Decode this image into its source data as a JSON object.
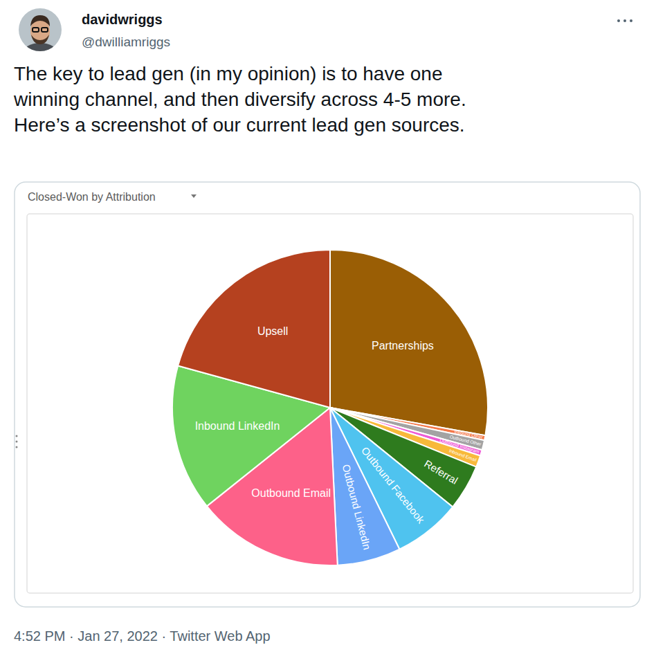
{
  "chart_data": {
    "type": "pie",
    "title": "Closed-Won by Attribution",
    "categories": [
      "Partnerships",
      "Inbound Other",
      "Outbound Other",
      "Outbound Instagram",
      "Inbound Email",
      "Referral",
      "Outbound Facebook",
      "Outbound LinkedIn",
      "Outbound Email",
      "Inbound LinkedIn",
      "Upsell"
    ],
    "values": [
      27.8,
      0.5,
      1.0,
      0.6,
      1.2,
      4.7,
      6.9,
      6.5,
      15.0,
      15.0,
      20.7
    ],
    "colors": [
      "#9a5e05",
      "#f4794a",
      "#a3a3a3",
      "#ee5bd6",
      "#f8b93b",
      "#2e7b1e",
      "#4fc3ef",
      "#6aa5f7",
      "#fd6189",
      "#6fd35f",
      "#b5411f"
    ]
  },
  "tweet": {
    "name": "davidwriggs",
    "handle": "@dwilliamriggs",
    "text_lines": [
      "The key to lead gen (in my opinion) is to have one",
      "winning channel, and then diversify across 4-5 more.",
      "Here’s a screenshot of our current lead gen sources."
    ],
    "footer": "4:52 PM · Jan 27, 2022 · Twitter Web App"
  }
}
